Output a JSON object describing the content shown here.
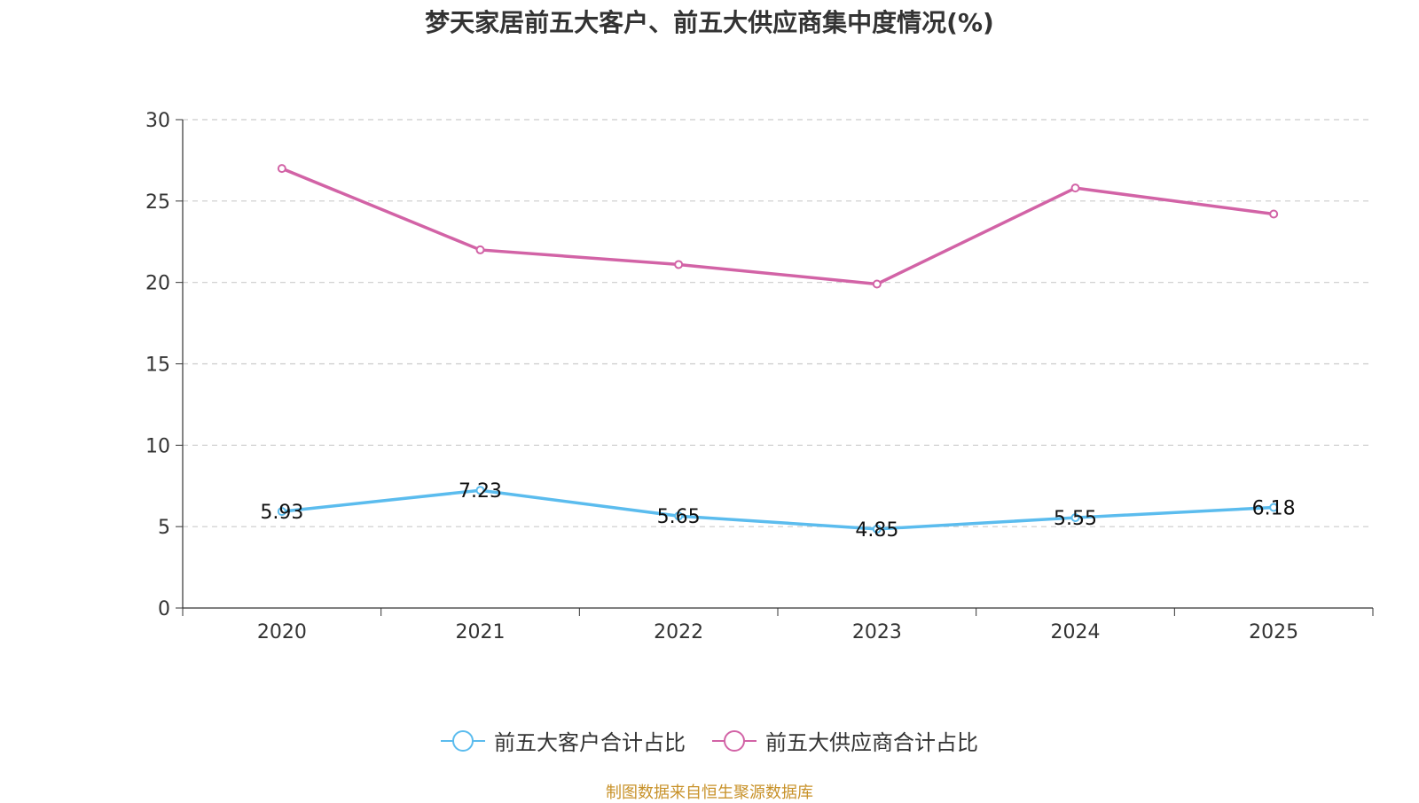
{
  "chart_data": {
    "type": "line",
    "title": "梦天家居前五大客户、前五大供应商集中度情况(%)",
    "categories": [
      "2020",
      "2021",
      "2022",
      "2023",
      "2024",
      "2025"
    ],
    "series": [
      {
        "name": "前五大客户合计占比",
        "color": "#5bbcee",
        "values": [
          5.93,
          7.23,
          5.65,
          4.85,
          5.55,
          6.18
        ],
        "labels": [
          "5.93",
          "7.23",
          "5.65",
          "4.85",
          "5.55",
          "6.18"
        ]
      },
      {
        "name": "前五大供应商合计占比",
        "color": "#d263a6",
        "values": [
          27.0,
          22.0,
          21.1,
          19.9,
          25.8,
          24.2
        ],
        "labels": []
      }
    ],
    "ylim": [
      0,
      30
    ],
    "yticks": [
      0,
      5,
      10,
      15,
      20,
      25,
      30
    ],
    "xlabel": "",
    "ylabel": "",
    "grid": true,
    "legend": "bottom-center"
  },
  "footer": {
    "source": "制图数据来自恒生聚源数据库"
  }
}
